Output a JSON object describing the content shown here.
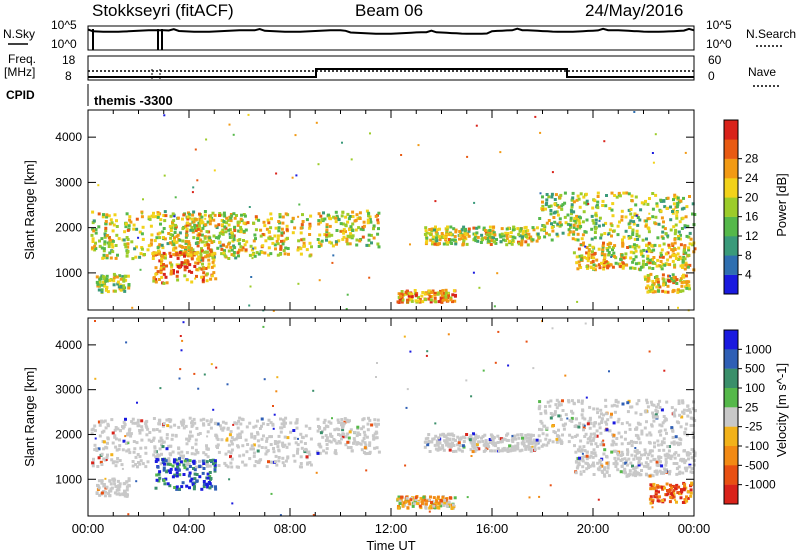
{
  "header": {
    "station": "Stokkseyri (fitACF)",
    "beam": "Beam 06",
    "date": "24/May/2016"
  },
  "labels": {
    "nsky": "N.Sky",
    "nsearch": "N.Search",
    "freq_line1": "Freq.",
    "freq_line2": "[MHz]",
    "nave": "Nave",
    "cpid": "CPID",
    "cpid_value": "themis -3300",
    "noise_ticks_left": [
      "10^5",
      "10^0"
    ],
    "noise_ticks_right": [
      "10^5",
      "10^0"
    ],
    "freq_ticks_left": [
      "18",
      "8"
    ],
    "freq_ticks_right": [
      "60",
      "0"
    ]
  },
  "colors": {
    "power_scale": [
      "#1a1adf",
      "#2f6fb0",
      "#3a9a7a",
      "#55b84a",
      "#9ccc2a",
      "#f2d21a",
      "#f29a14",
      "#e85a12",
      "#d9221a"
    ],
    "velocity_scale": [
      "#1a1adf",
      "#2f5fb5",
      "#3a8f6a",
      "#55b84a",
      "#c8c8c8",
      "#f2b21a",
      "#f28a14",
      "#e85012",
      "#d9221a"
    ]
  },
  "chart_data": [
    {
      "type": "heatmap",
      "panel": "power",
      "ylabel": "Slant Range [km]",
      "ylim": [
        180,
        4600
      ],
      "xlim_hours": [
        0,
        24
      ],
      "y_ticks": [
        1000,
        2000,
        3000,
        4000
      ],
      "colorbar_label": "Power [dB]",
      "colorbar_ticks": [
        "4",
        "8",
        "12",
        "16",
        "20",
        "24",
        "28"
      ],
      "regions": [
        {
          "t": [
            0.1,
            5.8
          ],
          "r": [
            1350,
            2400
          ],
          "level": 0.55
        },
        {
          "t": [
            3.2,
            8.8
          ],
          "r": [
            1400,
            2350
          ],
          "level": 0.6
        },
        {
          "t": [
            2.5,
            5.0
          ],
          "r": [
            800,
            1500
          ],
          "level": 0.75
        },
        {
          "t": [
            0.3,
            1.6
          ],
          "r": [
            600,
            1000
          ],
          "level": 0.5
        },
        {
          "t": [
            9.0,
            11.5
          ],
          "r": [
            1600,
            2400
          ],
          "level": 0.55
        },
        {
          "t": [
            12.2,
            14.5
          ],
          "r": [
            380,
            650
          ],
          "level": 0.7
        },
        {
          "t": [
            13.3,
            17.8
          ],
          "r": [
            1650,
            2050
          ],
          "level": 0.55
        },
        {
          "t": [
            17.8,
            24.0
          ],
          "r": [
            1750,
            2800
          ],
          "level": 0.5
        },
        {
          "t": [
            19.2,
            24.0
          ],
          "r": [
            1100,
            1700
          ],
          "level": 0.6
        },
        {
          "t": [
            22.0,
            23.8
          ],
          "r": [
            600,
            1000
          ],
          "level": 0.65
        }
      ]
    },
    {
      "type": "heatmap",
      "panel": "velocity",
      "ylabel": "Slant Range [km]",
      "xlabel": "Time UT",
      "ylim": [
        180,
        4600
      ],
      "xlim_hours": [
        0,
        24
      ],
      "x_ticks": [
        "00:00",
        "04:00",
        "08:00",
        "12:00",
        "16:00",
        "20:00",
        "00:00"
      ],
      "y_ticks": [
        1000,
        2000,
        3000,
        4000
      ],
      "colorbar_label": "Velocity [m s^-1]",
      "colorbar_ticks": [
        "1000",
        "500",
        "100",
        "25",
        "-25",
        "-100",
        "-500",
        "-1000"
      ],
      "regions": [
        {
          "t": [
            0.1,
            8.8
          ],
          "r": [
            1300,
            2400
          ],
          "level": 0.5
        },
        {
          "t": [
            2.6,
            5.0
          ],
          "r": [
            800,
            1500
          ],
          "level": 0.15
        },
        {
          "t": [
            0.3,
            1.6
          ],
          "r": [
            650,
            1050
          ],
          "level": 0.5
        },
        {
          "t": [
            9.0,
            11.5
          ],
          "r": [
            1600,
            2400
          ],
          "level": 0.5
        },
        {
          "t": [
            12.2,
            14.5
          ],
          "r": [
            380,
            650
          ],
          "level": 0.6
        },
        {
          "t": [
            13.3,
            17.8
          ],
          "r": [
            1650,
            2050
          ],
          "level": 0.5
        },
        {
          "t": [
            17.8,
            24.0
          ],
          "r": [
            1750,
            2800
          ],
          "level": 0.5
        },
        {
          "t": [
            19.2,
            24.0
          ],
          "r": [
            1100,
            1700
          ],
          "level": 0.5
        },
        {
          "t": [
            22.2,
            23.9
          ],
          "r": [
            500,
            950
          ],
          "level": 0.85
        }
      ]
    }
  ]
}
